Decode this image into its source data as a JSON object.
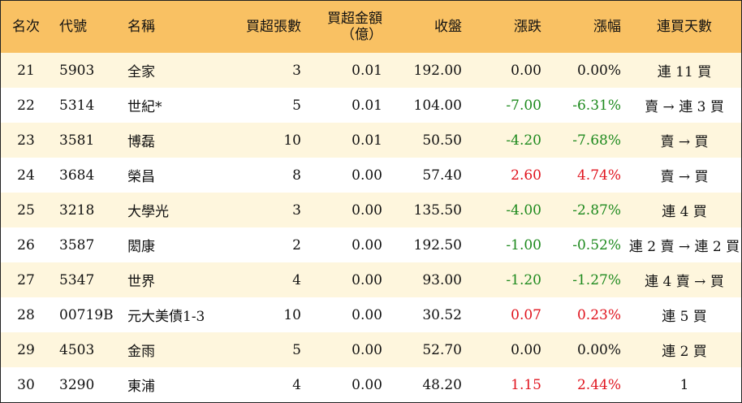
{
  "headers": {
    "rank": "名次",
    "code": "代號",
    "name": "名稱",
    "buy_volume": "買超張數",
    "buy_amount_line1": "買超金額",
    "buy_amount_line2": "（億）",
    "close": "收盤",
    "change": "漲跌",
    "change_pct": "漲幅",
    "consecutive_days": "連買天數"
  },
  "colors": {
    "header_bg": "#f9c163",
    "odd_row_bg": "#fef6dd",
    "up": "#e0141e",
    "down": "#1e8a1e"
  },
  "rows": [
    {
      "rank": "21",
      "code": "5903",
      "name": "全家",
      "buy_volume": "3",
      "buy_amount": "0.01",
      "close": "192.00",
      "change": "0.00",
      "change_pct": "0.00%",
      "days": "連 11 買",
      "dir": "flat"
    },
    {
      "rank": "22",
      "code": "5314",
      "name": "世紀*",
      "buy_volume": "5",
      "buy_amount": "0.01",
      "close": "104.00",
      "change": "-7.00",
      "change_pct": "-6.31%",
      "days": "賣 → 連 3 買",
      "dir": "down"
    },
    {
      "rank": "23",
      "code": "3581",
      "name": "博磊",
      "buy_volume": "10",
      "buy_amount": "0.01",
      "close": "50.50",
      "change": "-4.20",
      "change_pct": "-7.68%",
      "days": "賣 → 買",
      "dir": "down"
    },
    {
      "rank": "24",
      "code": "3684",
      "name": "榮昌",
      "buy_volume": "8",
      "buy_amount": "0.00",
      "close": "57.40",
      "change": "2.60",
      "change_pct": "4.74%",
      "days": "賣 → 買",
      "dir": "up"
    },
    {
      "rank": "25",
      "code": "3218",
      "name": "大學光",
      "buy_volume": "3",
      "buy_amount": "0.00",
      "close": "135.50",
      "change": "-4.00",
      "change_pct": "-2.87%",
      "days": "連 4 買",
      "dir": "down"
    },
    {
      "rank": "26",
      "code": "3587",
      "name": "閎康",
      "buy_volume": "2",
      "buy_amount": "0.00",
      "close": "192.50",
      "change": "-1.00",
      "change_pct": "-0.52%",
      "days": "連 2 賣 → 連 2 買",
      "dir": "down"
    },
    {
      "rank": "27",
      "code": "5347",
      "name": "世界",
      "buy_volume": "4",
      "buy_amount": "0.00",
      "close": "93.00",
      "change": "-1.20",
      "change_pct": "-1.27%",
      "days": "連 4 賣 → 買",
      "dir": "down"
    },
    {
      "rank": "28",
      "code": "00719B",
      "name": "元大美債1-3",
      "buy_volume": "10",
      "buy_amount": "0.00",
      "close": "30.52",
      "change": "0.07",
      "change_pct": "0.23%",
      "days": "連 5 買",
      "dir": "up"
    },
    {
      "rank": "29",
      "code": "4503",
      "name": "金雨",
      "buy_volume": "5",
      "buy_amount": "0.00",
      "close": "52.70",
      "change": "0.00",
      "change_pct": "0.00%",
      "days": "連 2 買",
      "dir": "flat"
    },
    {
      "rank": "30",
      "code": "3290",
      "name": "東浦",
      "buy_volume": "4",
      "buy_amount": "0.00",
      "close": "48.20",
      "change": "1.15",
      "change_pct": "2.44%",
      "days": "1",
      "dir": "up"
    }
  ]
}
